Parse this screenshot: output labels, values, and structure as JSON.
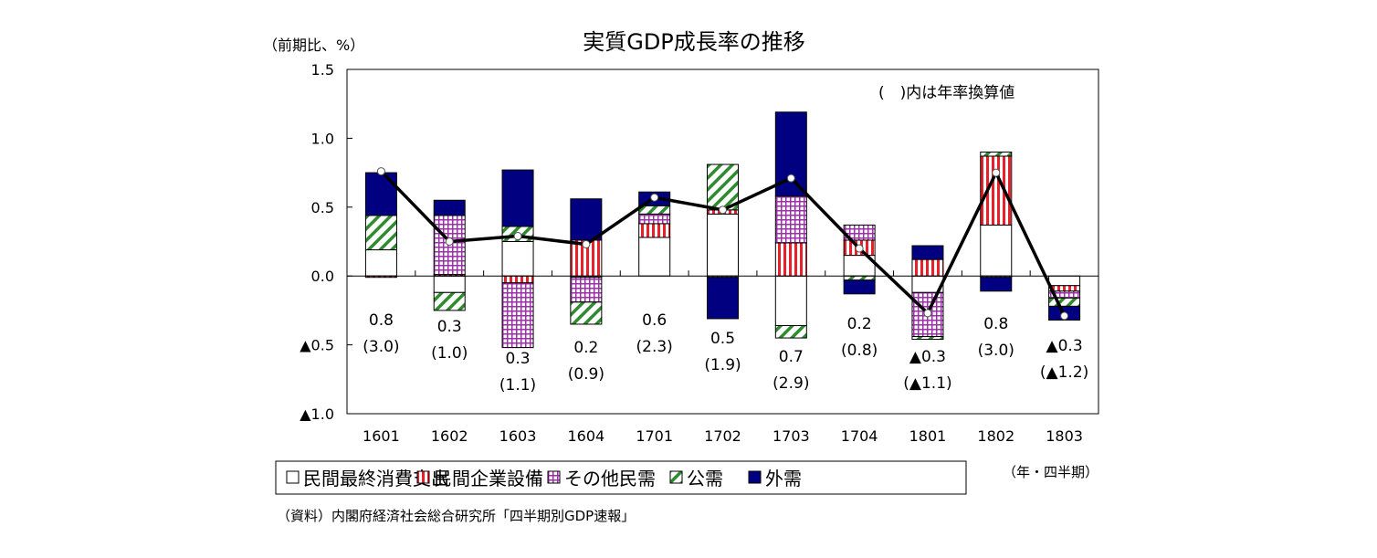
{
  "chart_data": {
    "type": "bar",
    "stacked": true,
    "title": "実質GDP成長率の推移",
    "ylabel": "（前期比、%）",
    "xlabel": "（年・四半期）",
    "note": "(　)内は年率換算値",
    "source": "（資料）内閣府経済社会総合研究所「四半期別GDP速報」",
    "ylim": [
      -1.0,
      1.5
    ],
    "yticks": [
      1.5,
      1.0,
      0.5,
      0.0,
      -0.5,
      -1.0
    ],
    "ytick_labels": [
      "1.5",
      "1.0",
      "0.5",
      "0.0",
      "▲0.5",
      "▲1.0"
    ],
    "grid": false,
    "legend_position": "bottom",
    "categories": [
      "1601",
      "1602",
      "1603",
      "1604",
      "1701",
      "1702",
      "1703",
      "1704",
      "1801",
      "1802",
      "1803"
    ],
    "series": [
      {
        "name": "民間最終消費支出",
        "color": "#ffffff",
        "values": [
          0.19,
          -0.12,
          0.25,
          -0.01,
          0.28,
          0.45,
          -0.36,
          0.15,
          -0.12,
          0.37,
          -0.07
        ]
      },
      {
        "name": "民間企業設備",
        "color": "#e8202a",
        "values": [
          -0.01,
          0.01,
          -0.05,
          0.26,
          0.1,
          0.03,
          0.24,
          0.11,
          0.12,
          0.5,
          -0.04
        ]
      },
      {
        "name": "その他民需",
        "color": "#9b30a8",
        "values": [
          0.0,
          0.43,
          -0.47,
          -0.18,
          0.07,
          -0.01,
          0.34,
          0.11,
          -0.32,
          -0.01,
          -0.05
        ]
      },
      {
        "name": "公需",
        "color": "#2e8b2e",
        "values": [
          0.25,
          -0.13,
          0.11,
          -0.16,
          0.06,
          0.33,
          -0.09,
          -0.03,
          -0.02,
          0.03,
          -0.06
        ]
      },
      {
        "name": "外需",
        "color": "#000080",
        "values": [
          0.31,
          0.11,
          0.41,
          0.3,
          0.1,
          -0.3,
          0.61,
          -0.1,
          0.1,
          -0.1,
          -0.1
        ]
      }
    ],
    "line": {
      "values": [
        0.76,
        0.25,
        0.29,
        0.23,
        0.57,
        0.48,
        0.71,
        0.2,
        -0.27,
        0.75,
        -0.29
      ]
    },
    "data_labels": [
      [
        "0.8",
        "(3.0)"
      ],
      [
        "0.3",
        "(1.0)"
      ],
      [
        "0.3",
        "(1.1)"
      ],
      [
        "0.2",
        "(0.9)"
      ],
      [
        "0.6",
        "(2.3)"
      ],
      [
        "0.5",
        "(1.9)"
      ],
      [
        "0.7",
        "(2.9)"
      ],
      [
        "0.2",
        "(0.8)"
      ],
      [
        "▲0.3",
        "(▲1.1)"
      ],
      [
        "0.8",
        "(3.0)"
      ],
      [
        "▲0.3",
        "(▲1.2)"
      ]
    ]
  }
}
